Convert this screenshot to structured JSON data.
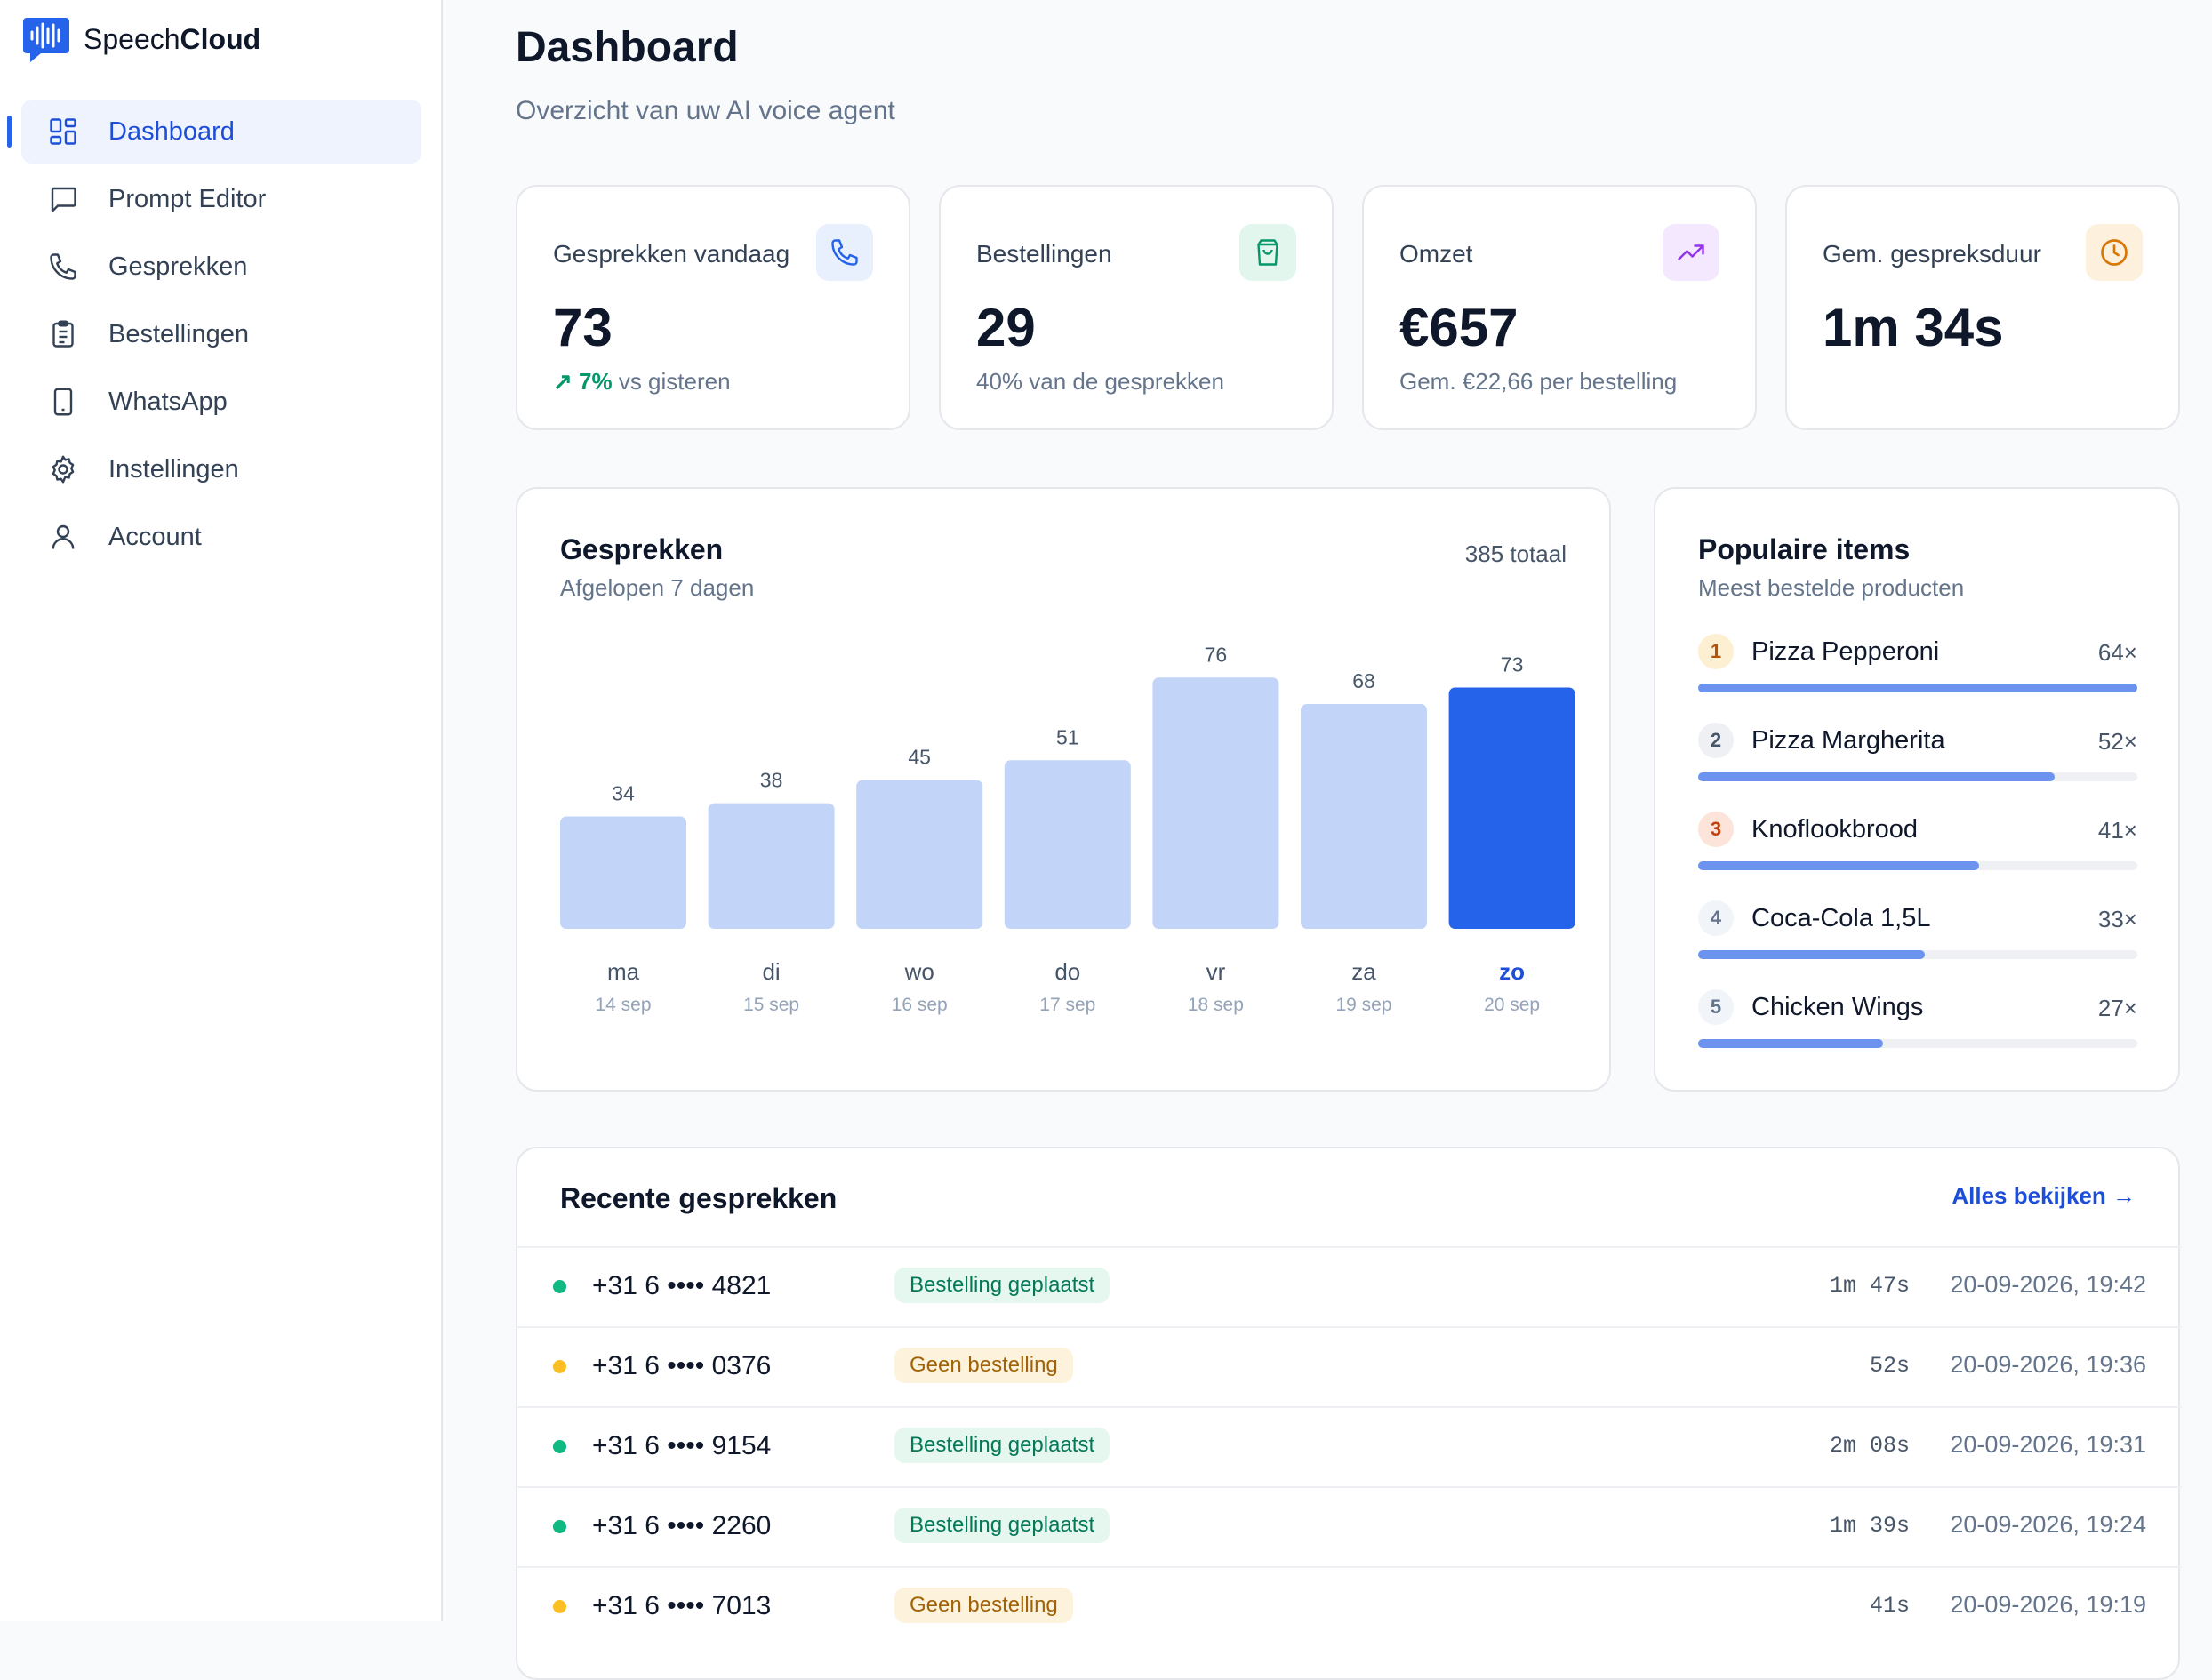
{
  "brand": {
    "name_light": "Speech",
    "name_bold": "Cloud"
  },
  "sidebar": {
    "items": [
      {
        "label": "Dashboard",
        "icon": "dashboard-icon",
        "active": true
      },
      {
        "label": "Prompt Editor",
        "icon": "message-square-icon"
      },
      {
        "label": "Gesprekken",
        "icon": "phone-icon"
      },
      {
        "label": "Bestellingen",
        "icon": "clipboard-list-icon"
      },
      {
        "label": "WhatsApp",
        "icon": "smartphone-icon"
      },
      {
        "label": "Instellingen",
        "icon": "gear-icon"
      },
      {
        "label": "Account",
        "icon": "user-icon"
      }
    ]
  },
  "header": {
    "title": "Dashboard",
    "subtitle": "Overzicht van uw AI voice agent"
  },
  "stats": [
    {
      "label": "Gesprekken vandaag",
      "value": "73",
      "trend": "↗ 7%",
      "note": "vs gisteren",
      "icon": "phone-icon",
      "icon_bg": "#e8effd",
      "icon_color": "#2563eb"
    },
    {
      "label": "Bestellingen",
      "value": "29",
      "trend": "",
      "note": "40% van de gesprekken",
      "icon": "shopping-bag-icon",
      "icon_bg": "#e2f6ee",
      "icon_color": "#059669"
    },
    {
      "label": "Omzet",
      "value": "€657",
      "trend": "",
      "note": "Gem. €22,66 per bestelling",
      "icon": "trending-up-icon",
      "icon_bg": "#f3e8fd",
      "icon_color": "#9333ea"
    },
    {
      "label": "Gem. gespreksduur",
      "value": "1m 34s",
      "trend": "",
      "note": "",
      "icon": "clock-icon",
      "icon_bg": "#fdf0dc",
      "icon_color": "#d97706"
    }
  ],
  "chart": {
    "title": "Gesprekken",
    "subtitle": "Afgelopen 7 dagen",
    "total": "385 totaal"
  },
  "chart_data": {
    "type": "bar",
    "categories": [
      "ma",
      "di",
      "wo",
      "do",
      "vr",
      "za",
      "zo"
    ],
    "dates": [
      "14 sep",
      "15 sep",
      "16 sep",
      "17 sep",
      "18 sep",
      "19 sep",
      "20 sep"
    ],
    "values": [
      34,
      38,
      45,
      51,
      76,
      68,
      73
    ],
    "highlight_index": 6,
    "bar_color": "#c2d4f8",
    "highlight_color": "#2563eb"
  },
  "popular": {
    "title": "Populaire items",
    "subtitle": "Meest bestelde producten",
    "items": [
      {
        "rank": "1",
        "name": "Pizza Pepperoni",
        "count": "64×",
        "value": 64,
        "rank_bg": "#fdf0d2",
        "rank_color": "#b45309"
      },
      {
        "rank": "2",
        "name": "Pizza Margherita",
        "count": "52×",
        "value": 52,
        "rank_bg": "#eef0f3",
        "rank_color": "#475569"
      },
      {
        "rank": "3",
        "name": "Knoflookbrood",
        "count": "41×",
        "value": 41,
        "rank_bg": "#fde4da",
        "rank_color": "#c2410c"
      },
      {
        "rank": "4",
        "name": "Coca-Cola 1,5L",
        "count": "33×",
        "value": 33,
        "rank_bg": "#f1f5f9",
        "rank_color": "#64748b"
      },
      {
        "rank": "5",
        "name": "Chicken Wings",
        "count": "27×",
        "value": 27,
        "rank_bg": "#f1f5f9",
        "rank_color": "#64748b"
      }
    ]
  },
  "recent": {
    "title": "Recente gesprekken",
    "view_all": "Alles bekijken →",
    "rows": [
      {
        "phone": "+31 6 •••• 4821",
        "status": "Bestelling geplaatst",
        "ordered": true,
        "duration": "1m 47s",
        "time": "20-09-2026, 19:42"
      },
      {
        "phone": "+31 6 •••• 0376",
        "status": "Geen bestelling",
        "ordered": false,
        "duration": "52s",
        "time": "20-09-2026, 19:36"
      },
      {
        "phone": "+31 6 •••• 9154",
        "status": "Bestelling geplaatst",
        "ordered": true,
        "duration": "2m 08s",
        "time": "20-09-2026, 19:31"
      },
      {
        "phone": "+31 6 •••• 2260",
        "status": "Bestelling geplaatst",
        "ordered": true,
        "duration": "1m 39s",
        "time": "20-09-2026, 19:24"
      },
      {
        "phone": "+31 6 •••• 7013",
        "status": "Geen bestelling",
        "ordered": false,
        "duration": "41s",
        "time": "20-09-2026, 19:19"
      }
    ]
  }
}
